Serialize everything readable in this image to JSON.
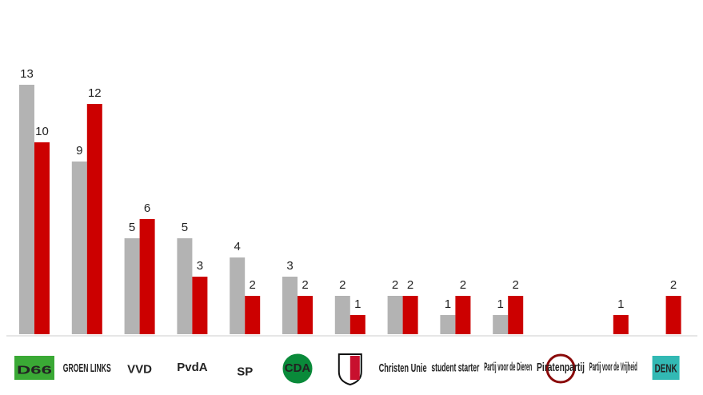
{
  "chart_data": {
    "type": "bar",
    "categories": [
      "D66",
      "GROEN LINKS",
      "VVD",
      "PvdA",
      "SP",
      "CDA",
      null,
      "Christen Unie",
      "student starter",
      "Partij voor de Dieren",
      "Piratenpartij",
      "Partij voor de Vrijheid",
      "DENK"
    ],
    "series": [
      {
        "color": "#b3b3b3",
        "values": [
          13,
          9,
          5,
          5,
          4,
          3,
          2,
          2,
          1,
          1,
          null,
          null,
          null
        ]
      },
      {
        "color": "#cc0000",
        "values": [
          10,
          12,
          6,
          3,
          2,
          2,
          1,
          2,
          2,
          2,
          null,
          1,
          2
        ]
      }
    ]
  }
}
